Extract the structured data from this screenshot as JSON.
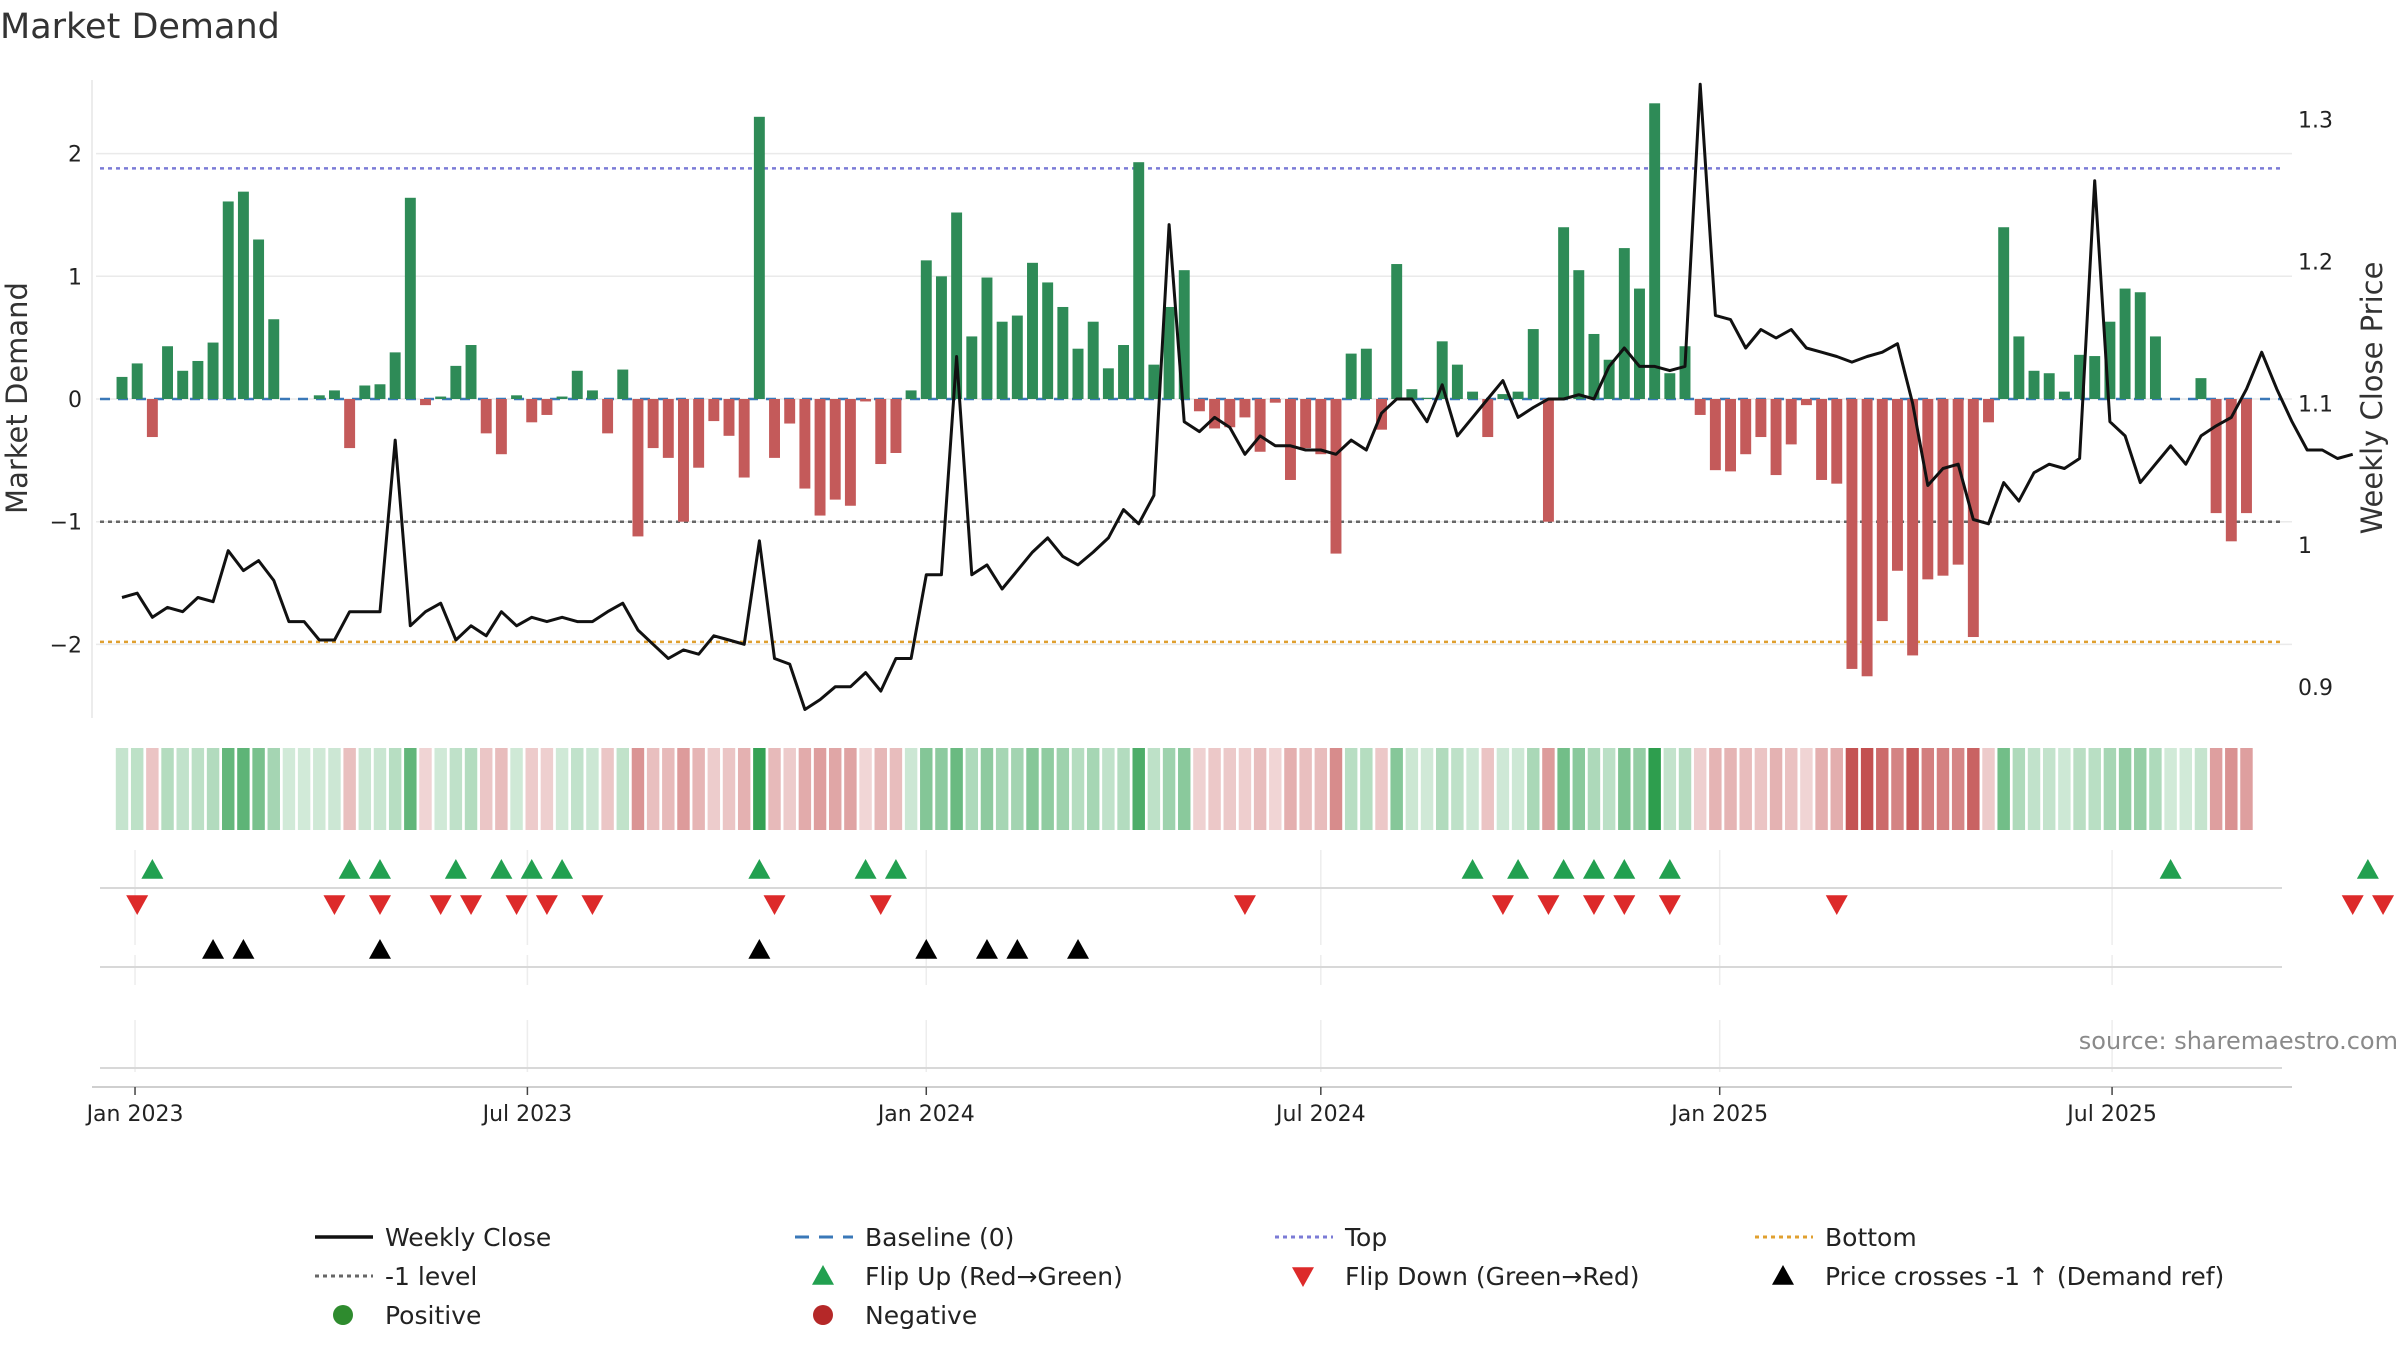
{
  "chart_data": {
    "type": "bar",
    "title": "Market Demand",
    "ylabel_left": "Market Demand",
    "ylabel_right": "Weekly Close Price",
    "source": "source: sharemaestro.com",
    "x_start": "2022-12-26",
    "x_step_days": 7,
    "x_range_days": [
      -12,
      1001
    ],
    "ylim_left": [
      -2.6,
      2.6
    ],
    "ylim_right": [
      0.878,
      1.328
    ],
    "yticks_left": [
      2,
      1,
      0,
      -1,
      -2
    ],
    "ytick_labels_left": [
      "2",
      "1",
      "0",
      "−1",
      "−2"
    ],
    "yticks_right": [
      1.3,
      1.2,
      1.1,
      1.0,
      0.9
    ],
    "ytick_labels_right": [
      "1.3",
      "1.2",
      "1.1",
      "1",
      "0.9"
    ],
    "xticks": [
      {
        "label": "Jan 2023",
        "day": 6
      },
      {
        "label": "Jul 2023",
        "day": 187
      },
      {
        "label": "Jan 2024",
        "day": 371
      },
      {
        "label": "Jul 2024",
        "day": 553
      },
      {
        "label": "Jan 2025",
        "day": 737
      },
      {
        "label": "Jul 2025",
        "day": 918
      }
    ],
    "reference_lines": [
      {
        "name": "Top",
        "value": 1.88,
        "color": "#7b7bd6",
        "dash": "4,4"
      },
      {
        "name": "-1 level",
        "value": -1.0,
        "color": "#666666",
        "dash": "4,4"
      },
      {
        "name": "Bottom",
        "value": -1.98,
        "color": "#e0a030",
        "dash": "4,4"
      },
      {
        "name": "Baseline (0)",
        "value": 0.0,
        "color": "#3a78b8",
        "dash": "10,8"
      }
    ],
    "colors": {
      "positive_bar": "#2e8b57",
      "negative_bar": "#c45a5a",
      "weekly_close": "#111111",
      "flip_up": "#22a050",
      "flip_down": "#dd2a2a",
      "cross": "#000000",
      "positive_dot": "#2e8b2e",
      "negative_dot": "#b52828"
    },
    "series": [
      {
        "name": "Market Demand",
        "values": [
          0.18,
          0.29,
          -0.31,
          0.43,
          0.23,
          0.31,
          0.46,
          1.61,
          1.69,
          1.3,
          0.65,
          0.0,
          0.0,
          0.03,
          0.07,
          -0.4,
          0.11,
          0.12,
          0.38,
          1.64,
          -0.05,
          0.02,
          0.27,
          0.44,
          -0.28,
          -0.45,
          0.03,
          -0.19,
          -0.13,
          0.02,
          0.23,
          0.07,
          -0.28,
          0.24,
          -1.12,
          -0.4,
          -0.48,
          -1.0,
          -0.56,
          -0.18,
          -0.3,
          -0.64,
          2.3,
          -0.48,
          -0.2,
          -0.73,
          -0.95,
          -0.82,
          -0.87,
          -0.02,
          -0.53,
          -0.44,
          0.07,
          1.13,
          1.0,
          1.52,
          0.51,
          0.99,
          0.63,
          0.68,
          1.11,
          0.95,
          0.75,
          0.41,
          0.63,
          0.25,
          0.44,
          1.93,
          0.28,
          0.75,
          1.05,
          -0.1,
          -0.24,
          -0.23,
          -0.15,
          -0.43,
          -0.03,
          -0.66,
          -0.4,
          -0.45,
          -1.26,
          0.37,
          0.41,
          -0.25,
          1.1,
          0.08,
          0.01,
          0.47,
          0.28,
          0.06,
          -0.31,
          0.04,
          0.06,
          0.57,
          -1.0,
          1.4,
          1.05,
          0.53,
          0.32,
          1.23,
          0.9,
          2.41,
          0.21,
          0.43,
          -0.13,
          -0.58,
          -0.59,
          -0.45,
          -0.31,
          -0.62,
          -0.37,
          -0.05,
          -0.66,
          -0.69,
          -2.2,
          -2.26,
          -1.81,
          -1.4,
          -2.09,
          -1.47,
          -1.44,
          -1.35,
          -1.94,
          -0.19,
          1.4,
          0.51,
          0.23,
          0.21,
          0.06,
          0.36,
          0.35,
          0.63,
          0.9,
          0.87,
          0.51,
          0.0,
          0.0,
          0.17,
          -0.93,
          -1.16,
          -0.93
        ]
      },
      {
        "name": "Weekly Close",
        "values": [
          0.963,
          0.966,
          0.949,
          0.956,
          0.953,
          0.963,
          0.96,
          0.996,
          0.982,
          0.989,
          0.975,
          0.946,
          0.946,
          0.933,
          0.933,
          0.953,
          0.953,
          0.953,
          1.074,
          0.943,
          0.953,
          0.959,
          0.933,
          0.943,
          0.936,
          0.953,
          0.943,
          0.949,
          0.946,
          0.949,
          0.946,
          0.946,
          0.953,
          0.959,
          0.94,
          0.93,
          0.92,
          0.926,
          0.923,
          0.936,
          0.933,
          0.93,
          1.003,
          0.92,
          0.916,
          0.884,
          0.891,
          0.9,
          0.9,
          0.91,
          0.897,
          0.92,
          0.92,
          0.979,
          0.979,
          1.133,
          0.979,
          0.986,
          0.969,
          0.982,
          0.995,
          1.005,
          0.992,
          0.986,
          0.995,
          1.005,
          1.025,
          1.015,
          1.035,
          1.226,
          1.087,
          1.08,
          1.09,
          1.083,
          1.064,
          1.077,
          1.07,
          1.07,
          1.067,
          1.067,
          1.064,
          1.074,
          1.067,
          1.093,
          1.103,
          1.103,
          1.087,
          1.113,
          1.077,
          1.09,
          1.103,
          1.116,
          1.09,
          1.097,
          1.103,
          1.103,
          1.106,
          1.103,
          1.126,
          1.139,
          1.126,
          1.126,
          1.123,
          1.126,
          1.325,
          1.162,
          1.159,
          1.139,
          1.152,
          1.146,
          1.152,
          1.139,
          1.136,
          1.133,
          1.129,
          1.133,
          1.136,
          1.142,
          1.1,
          1.042,
          1.054,
          1.057,
          1.018,
          1.015,
          1.044,
          1.031,
          1.051,
          1.057,
          1.054,
          1.061,
          1.257,
          1.087,
          1.077,
          1.044,
          1.057,
          1.07,
          1.057,
          1.077,
          1.084,
          1.09,
          1.11,
          1.136,
          1.11,
          1.087,
          1.067,
          1.067,
          1.061,
          1.064
        ]
      }
    ],
    "flip_up_weeks": [
      2,
      15,
      17,
      22,
      25,
      27,
      29,
      42,
      49,
      51,
      89,
      92,
      95,
      97,
      99,
      102,
      135,
      148
    ],
    "flip_down_weeks": [
      1,
      14,
      17,
      21,
      23,
      26,
      28,
      31,
      43,
      50,
      74,
      91,
      94,
      97,
      99,
      102,
      113,
      147,
      149
    ],
    "price_cross_weeks": [
      6,
      8,
      17,
      42,
      53,
      57,
      59,
      63
    ],
    "legend": [
      {
        "label": "Weekly Close",
        "kind": "line",
        "color": "#111111"
      },
      {
        "label": "Baseline (0)",
        "kind": "dash",
        "color": "#3a78b8"
      },
      {
        "label": "Top",
        "kind": "dot",
        "color": "#7b7bd6"
      },
      {
        "label": "Bottom",
        "kind": "dot",
        "color": "#e0a030"
      },
      {
        "label": "-1 level",
        "kind": "dot",
        "color": "#666666"
      },
      {
        "label": "Flip Up (Red→Green)",
        "kind": "tri-up",
        "color": "#22a050"
      },
      {
        "label": "Flip Down (Green→Red)",
        "kind": "tri-down",
        "color": "#dd2a2a"
      },
      {
        "label": "Price crosses -1 ↑ (Demand ref)",
        "kind": "tri-up",
        "color": "#000000"
      },
      {
        "label": "Positive",
        "kind": "circle",
        "color": "#2e8b2e"
      },
      {
        "label": "Negative",
        "kind": "circle",
        "color": "#b52828"
      }
    ]
  }
}
